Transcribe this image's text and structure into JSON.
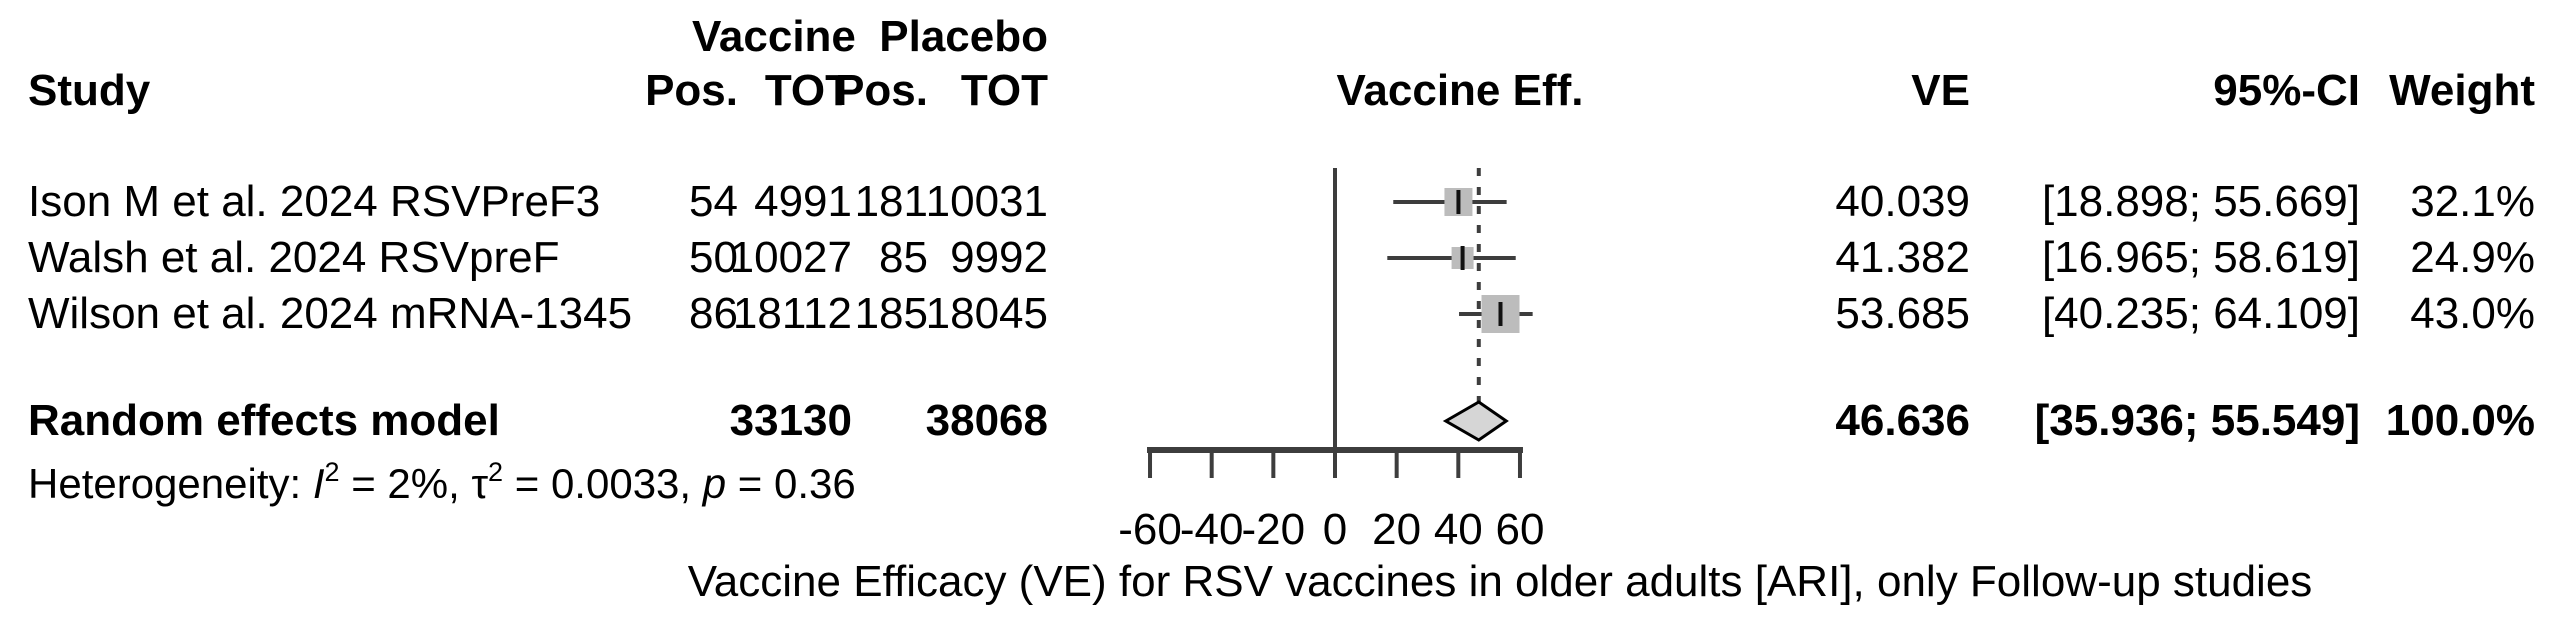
{
  "header": {
    "group_vaccine": "Vaccine",
    "group_placebo": "Placebo",
    "col_study": "Study",
    "col_pos_vaccine": "Pos.",
    "col_tot_vaccine": "TOT",
    "col_pos_placebo": "Pos.",
    "col_tot_placebo": "TOT",
    "col_effect": "Vaccine Eff.",
    "col_ve": "VE",
    "col_ci": "95%-CI",
    "col_weight": "Weight"
  },
  "chart_data": {
    "type": "forest",
    "x_axis": {
      "range": [
        -60,
        60
      ],
      "ticks": [
        -60,
        -40,
        -20,
        0,
        20,
        40,
        60
      ],
      "labels": [
        "-60",
        "-40",
        "-20",
        "0",
        "20",
        "40",
        "60"
      ],
      "reference_line": 0,
      "pooled_dashed_line": 46.636
    },
    "studies": [
      {
        "study": "Ison M et al. 2024 RSVPreF3",
        "vaccine_pos": "54",
        "vaccine_tot": "4991",
        "placebo_pos": "181",
        "placebo_tot": "10031",
        "ve": 40.039,
        "ci_low": 18.898,
        "ci_high": 55.669,
        "ve_label": "40.039",
        "ci_label": "[18.898; 55.669]",
        "weight": 32.1,
        "weight_label": "32.1%"
      },
      {
        "study": "Walsh et al. 2024 RSVpreF",
        "vaccine_pos": "50",
        "vaccine_tot": "10027",
        "placebo_pos": "85",
        "placebo_tot": "9992",
        "ve": 41.382,
        "ci_low": 16.965,
        "ci_high": 58.619,
        "ve_label": "41.382",
        "ci_label": "[16.965; 58.619]",
        "weight": 24.9,
        "weight_label": "24.9%"
      },
      {
        "study": "Wilson et al. 2024 mRNA-1345",
        "vaccine_pos": "86",
        "vaccine_tot": "18112",
        "placebo_pos": "185",
        "placebo_tot": "18045",
        "ve": 53.685,
        "ci_low": 40.235,
        "ci_high": 64.109,
        "ve_label": "53.685",
        "ci_label": "[40.235; 64.109]",
        "weight": 43.0,
        "weight_label": "43.0%"
      }
    ],
    "pooled": {
      "label": "Random effects model",
      "vaccine_tot": "33130",
      "placebo_tot": "38068",
      "ve": 46.636,
      "ci_low": 35.936,
      "ci_high": 55.549,
      "ve_label": "46.636",
      "ci_label": "[35.936; 55.549]",
      "weight_label": "100.0%"
    },
    "heterogeneity": {
      "pre": "Heterogeneity: ",
      "i2": "I",
      "i2_sup": "2",
      "mid1": " = 2%, ",
      "tau": "τ",
      "tau_sup": "2",
      "mid2": " = 0.0033, ",
      "p": "p",
      "post": " = 0.36"
    },
    "caption": "Vaccine Efficacy (VE) for RSV vaccines in older adults [ARI], only Follow-up studies"
  },
  "colors": {
    "line": "#3d3d3d",
    "marker": "#111111",
    "square": "#bcbcbc",
    "diamond_fill": "#d6d6d6",
    "diamond_stroke": "#000000",
    "text": "#000000"
  }
}
